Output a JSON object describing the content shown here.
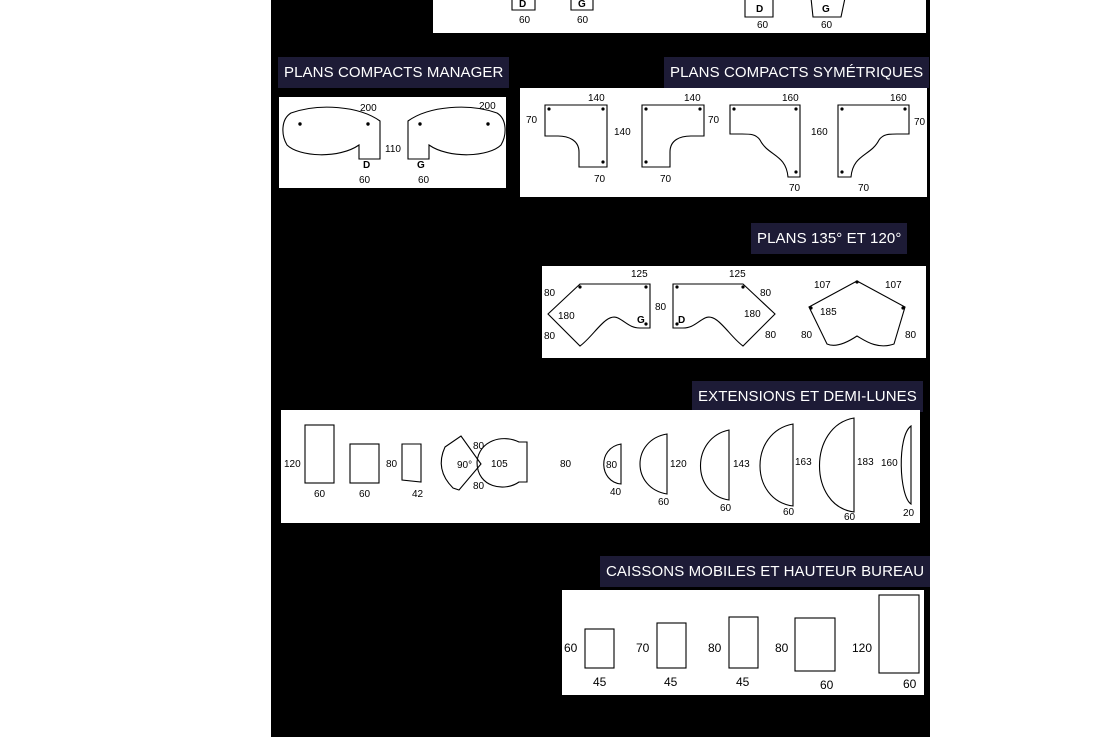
{
  "colors": {
    "page_bg": "#ffffff",
    "sheet_bg": "#000000",
    "header_bg": "#1d1b36",
    "header_text": "#ffffff"
  },
  "top_strip": {
    "labels": [
      "D",
      "G",
      "60",
      "60",
      "D",
      "G",
      "60",
      "60"
    ]
  },
  "sections": [
    {
      "id": "compacts-manager",
      "title": "PLANS COMPACTS MANAGER",
      "labels": [
        "200",
        "D",
        "110",
        "60",
        "200",
        "G",
        "60"
      ]
    },
    {
      "id": "compacts-symetriques",
      "title": "PLANS COMPACTS SYMÉTRIQUES",
      "labels": [
        "140",
        "70",
        "140",
        "70",
        "140",
        "70",
        "70",
        "160",
        "160",
        "70",
        "160",
        "70",
        "70"
      ]
    },
    {
      "id": "plans-135-120",
      "title": "PLANS 135° ET 120°",
      "labels": [
        "125",
        "80",
        "180",
        "80",
        "G",
        "125",
        "80",
        "D",
        "180",
        "80",
        "80",
        "107",
        "107",
        "185",
        "80",
        "80"
      ]
    },
    {
      "id": "extensions-demi-lunes",
      "title": "EXTENSIONS ET DEMI-LUNES",
      "labels": [
        "120",
        "60",
        "60",
        "80",
        "42",
        "80",
        "90°",
        "80",
        "105",
        "80",
        "80",
        "40",
        "120",
        "60",
        "143",
        "60",
        "163",
        "60",
        "183",
        "60",
        "160",
        "20"
      ]
    },
    {
      "id": "caissons-mobiles",
      "title": "CAISSONS MOBILES ET HAUTEUR BUREAU",
      "labels": [
        "60",
        "45",
        "70",
        "45",
        "80",
        "45",
        "80",
        "60",
        "120",
        "60"
      ]
    }
  ]
}
